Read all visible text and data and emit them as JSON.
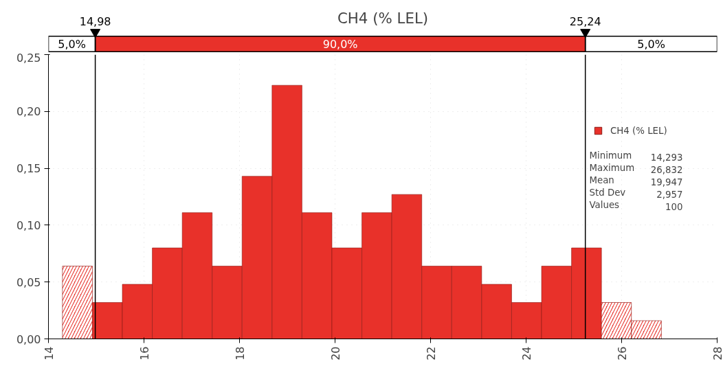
{
  "chart_data": {
    "type": "histogram",
    "title": "CH4 (% LEL)",
    "bins": [
      14.293,
      14.92,
      15.547,
      16.174,
      16.801,
      17.428,
      18.054,
      18.681,
      19.308,
      19.935,
      20.562,
      21.189,
      21.816,
      22.443,
      23.07,
      23.697,
      24.324,
      24.951,
      25.578,
      26.205,
      26.832
    ],
    "series": [
      {
        "name": "CH4 (% LEL)",
        "color": "#e8312a",
        "values": [
          0.064,
          0.032,
          0.048,
          0.08,
          0.111,
          0.064,
          0.143,
          0.223,
          0.111,
          0.08,
          0.111,
          0.127,
          0.064,
          0.064,
          0.048,
          0.032,
          0.064,
          0.08,
          0.032,
          0.016
        ]
      }
    ],
    "xlim": [
      14,
      28
    ],
    "xticks": [
      14,
      16,
      18,
      20,
      22,
      24,
      26,
      28
    ],
    "ylim": [
      0,
      0.25
    ],
    "yticks": [
      {
        "value": 0,
        "label": "0,00"
      },
      {
        "value": 0.05,
        "label": "0,05"
      },
      {
        "value": 0.1,
        "label": "0,10"
      },
      {
        "value": 0.15,
        "label": "0,15"
      },
      {
        "value": 0.2,
        "label": "0,20"
      },
      {
        "value": 0.25,
        "label": "0,25"
      }
    ],
    "ref_lines": [
      {
        "axis": "x",
        "value": 14.98,
        "label": "14,98",
        "color": "#000000"
      },
      {
        "axis": "x",
        "value": 25.24,
        "label": "25,24",
        "color": "#000000"
      }
    ],
    "annotations": [
      "5,0%",
      "90,0%",
      "5,0%",
      "Minimum 14,293",
      "Maximum 26,832",
      "Mean 19,947",
      "Std Dev 2,957",
      "Values 100"
    ],
    "grid": true,
    "legend": "right"
  }
}
